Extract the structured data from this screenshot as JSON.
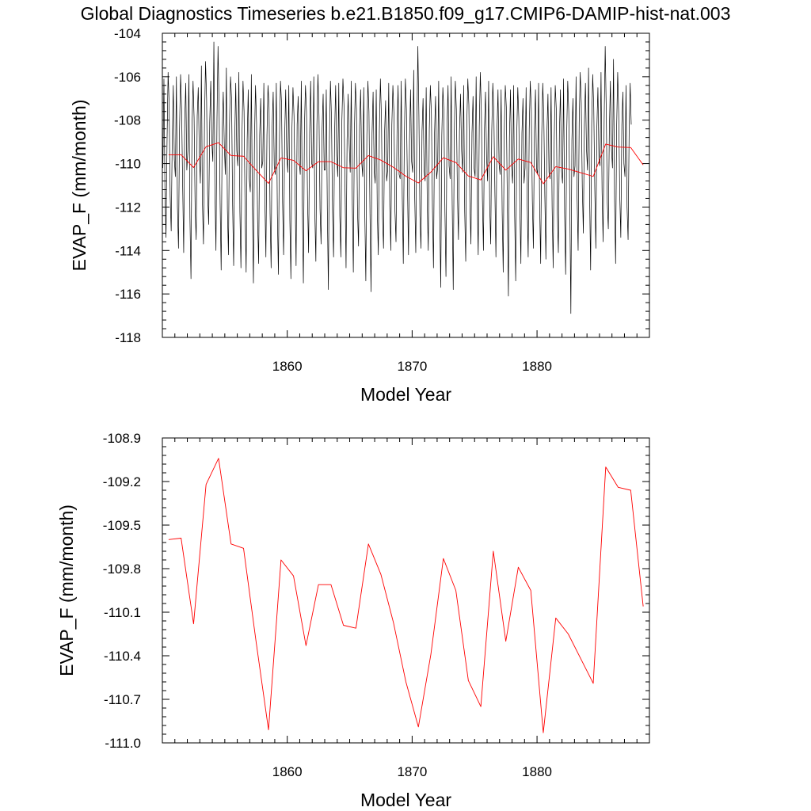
{
  "title": "Global Diagnostics Timeseries b.e21.B1850.f09_g17.CMIP6-DAMIP-hist-nat.003",
  "colors": {
    "monthly": "#000000",
    "annual": "#ff0000"
  },
  "chart_data": [
    {
      "type": "line",
      "xlabel": "Model Year",
      "ylabel": "EVAP_F (mm/month)",
      "xlim": [
        1850,
        1889
      ],
      "ylim": [
        -118,
        -104
      ],
      "xticks": [
        "1860",
        "1870",
        "1880"
      ],
      "yticks": [
        "-104",
        "-106",
        "-108",
        "-110",
        "-112",
        "-114",
        "-116",
        "-118"
      ],
      "series": [
        {
          "values": [
            -110.2,
            -106.1,
            -111.3,
            -113.4,
            -109.0,
            -105.8,
            -107.2,
            -111.5,
            -113.1,
            -108.9,
            -106.4,
            -109.8,
            -110.6,
            -106.0,
            -112.0,
            -113.9,
            -108.4,
            -105.9,
            -107.5,
            -111.0,
            -114.1,
            -108.0,
            -106.3,
            -110.3,
            -109.4,
            -105.9,
            -112.5,
            -115.3,
            -108.3,
            -106.2,
            -107.9,
            -112.1,
            -113.5,
            -107.8,
            -106.5,
            -109.5,
            -110.9,
            -105.5,
            -111.8,
            -113.7,
            -108.0,
            -105.3,
            -107.0,
            -111.4,
            -112.8,
            -108.1,
            -106.2,
            -109.0,
            -109.9,
            -104.4,
            -111.2,
            -114.0,
            -107.9,
            -104.6,
            -107.4,
            -111.8,
            -114.9,
            -108.5,
            -106.7,
            -109.1,
            -110.5,
            -105.6,
            -112.1,
            -114.2,
            -108.2,
            -106.0,
            -107.0,
            -111.9,
            -114.7,
            -109.0,
            -106.3,
            -109.4,
            -110.1,
            -105.8,
            -112.2,
            -114.8,
            -108.7,
            -106.2,
            -107.6,
            -112.2,
            -115.0,
            -108.9,
            -106.6,
            -110.7,
            -111.3,
            -105.9,
            -112.0,
            -115.5,
            -108.9,
            -106.4,
            -108.1,
            -112.6,
            -114.6,
            -108.7,
            -107.0,
            -110.2,
            -109.9,
            -106.3,
            -111.7,
            -114.3,
            -108.7,
            -106.4,
            -107.4,
            -112.3,
            -114.8,
            -108.3,
            -106.7,
            -110.1,
            -110.5,
            -106.3,
            -112.3,
            -115.1,
            -108.9,
            -106.2,
            -107.2,
            -111.8,
            -114.2,
            -108.8,
            -106.6,
            -109.6,
            -110.4,
            -106.4,
            -112.6,
            -115.3,
            -108.4,
            -106.5,
            -107.8,
            -111.3,
            -114.7,
            -108.2,
            -106.9,
            -109.9,
            -110.5,
            -106.2,
            -112.0,
            -115.5,
            -108.3,
            -106.4,
            -107.6,
            -111.7,
            -114.1,
            -108.6,
            -106.2,
            -110.0,
            -110.2,
            -106.0,
            -112.3,
            -114.5,
            -108.2,
            -105.9,
            -107.8,
            -112.1,
            -113.7,
            -108.4,
            -106.8,
            -110.3,
            -110.3,
            -106.6,
            -112.1,
            -115.8,
            -109.0,
            -106.2,
            -107.9,
            -112.2,
            -114.3,
            -108.6,
            -106.4,
            -109.6,
            -110.6,
            -106.3,
            -112.4,
            -114.3,
            -108.0,
            -106.1,
            -107.3,
            -111.1,
            -114.8,
            -108.9,
            -106.8,
            -109.1,
            -110.4,
            -106.2,
            -111.8,
            -115.0,
            -108.5,
            -106.3,
            -107.5,
            -112.2,
            -113.8,
            -108.3,
            -106.6,
            -109.9,
            -110.6,
            -106.5,
            -112.3,
            -115.4,
            -108.7,
            -106.2,
            -107.6,
            -112.3,
            -115.9,
            -108.6,
            -106.7,
            -110.3,
            -110.9,
            -106.6,
            -112.2,
            -114.2,
            -108.5,
            -106.1,
            -107.9,
            -112.4,
            -113.9,
            -108.6,
            -107.1,
            -110.8,
            -110.3,
            -106.3,
            -111.9,
            -114.0,
            -108.2,
            -106.4,
            -107.7,
            -112.2,
            -113.6,
            -108.4,
            -106.4,
            -110.5,
            -110.7,
            -106.2,
            -111.5,
            -114.6,
            -108.8,
            -106.1,
            -107.5,
            -111.0,
            -114.2,
            -108.9,
            -106.6,
            -109.9,
            -110.4,
            -105.7,
            -111.6,
            -114.1,
            -108.5,
            -104.6,
            -107.8,
            -112.4,
            -113.9,
            -108.5,
            -107.0,
            -110.3,
            -110.8,
            -106.5,
            -111.8,
            -114.0,
            -108.4,
            -106.4,
            -107.7,
            -112.0,
            -114.8,
            -108.6,
            -106.9,
            -110.7,
            -110.2,
            -106.2,
            -112.3,
            -115.7,
            -108.7,
            -106.5,
            -107.6,
            -112.2,
            -115.2,
            -108.3,
            -106.4,
            -110.1,
            -110.7,
            -106.0,
            -111.9,
            -115.8,
            -108.6,
            -106.2,
            -107.5,
            -111.4,
            -113.5,
            -108.5,
            -106.8,
            -109.4,
            -110.4,
            -106.4,
            -112.2,
            -114.5,
            -108.2,
            -106.1,
            -107.3,
            -111.8,
            -113.7,
            -108.6,
            -106.9,
            -110.2,
            -110.6,
            -106.0,
            -111.5,
            -114.2,
            -108.3,
            -105.8,
            -107.6,
            -111.6,
            -114.0,
            -108.4,
            -106.7,
            -109.7,
            -110.8,
            -106.2,
            -111.9,
            -113.7,
            -108.5,
            -106.3,
            -107.6,
            -111.3,
            -114.3,
            -108.5,
            -106.6,
            -110.0,
            -110.5,
            -106.6,
            -112.2,
            -115.0,
            -108.6,
            -106.4,
            -107.4,
            -112.1,
            -116.1,
            -108.8,
            -106.6,
            -110.1,
            -110.9,
            -106.4,
            -112.4,
            -115.4,
            -108.7,
            -106.5,
            -107.9,
            -112.0,
            -114.6,
            -108.6,
            -107.0,
            -110.9,
            -110.2,
            -106.5,
            -111.8,
            -114.3,
            -108.4,
            -106.2,
            -107.5,
            -111.7,
            -113.9,
            -108.5,
            -106.6,
            -110.2,
            -110.5,
            -106.3,
            -111.9,
            -114.6,
            -108.7,
            -106.3,
            -107.8,
            -111.5,
            -114.4,
            -108.6,
            -106.8,
            -110.4,
            -110.7,
            -106.5,
            -112.0,
            -114.8,
            -108.9,
            -106.4,
            -107.5,
            -112.3,
            -114.1,
            -108.6,
            -106.6,
            -110.3,
            -110.9,
            -106.1,
            -112.3,
            -115.1,
            -108.6,
            -106.2,
            -107.6,
            -111.9,
            -116.9,
            -108.9,
            -107.0,
            -110.6,
            -110.1,
            -106.0,
            -111.6,
            -114.0,
            -108.1,
            -105.8,
            -107.2,
            -111.1,
            -113.2,
            -108.2,
            -106.3,
            -109.3,
            -110.3,
            -105.6,
            -111.4,
            -114.9,
            -108.2,
            -105.9,
            -107.4,
            -111.2,
            -113.9,
            -108.3,
            -106.5,
            -109.8,
            -110.1,
            -105.8,
            -111.3,
            -113.6,
            -108.0,
            -104.6,
            -107.5,
            -111.8,
            -113.0,
            -108.4,
            -106.2,
            -109.3,
            -110.2,
            -105.2,
            -111.7,
            -114.6,
            -108.3,
            -105.8,
            -107.7,
            -111.5,
            -113.4,
            -108.2,
            -106.7,
            -110.0,
            -110.6,
            -106.4,
            -112.0,
            -113.5,
            -108.5,
            -106.3,
            -108.2
          ]
        },
        {
          "x": [
            1850.5,
            1851.5,
            1852.5,
            1853.5,
            1854.5,
            1855.5,
            1856.5,
            1857.5,
            1858.5,
            1859.5,
            1860.5,
            1861.5,
            1862.5,
            1863.5,
            1864.5,
            1865.5,
            1866.5,
            1867.5,
            1868.5,
            1869.5,
            1870.5,
            1871.5,
            1872.5,
            1873.5,
            1874.5,
            1875.5,
            1876.5,
            1877.5,
            1878.5,
            1879.5,
            1880.5,
            1881.5,
            1882.5,
            1883.5,
            1884.5,
            1885.5,
            1886.5,
            1887.5,
            1888.5
          ],
          "values": [
            -109.6,
            -109.59,
            -110.18,
            -109.22,
            -109.04,
            -109.63,
            -109.66,
            -110.3,
            -110.91,
            -109.74,
            -109.85,
            -110.33,
            -109.91,
            -109.91,
            -110.19,
            -110.21,
            -109.63,
            -109.84,
            -110.17,
            -110.58,
            -110.89,
            -110.39,
            -109.73,
            -109.95,
            -110.57,
            -110.75,
            -109.68,
            -110.3,
            -109.79,
            -109.95,
            -110.93,
            -110.14,
            -110.25,
            -110.42,
            -110.59,
            -109.1,
            -109.24,
            -109.26,
            -110.06
          ]
        }
      ]
    },
    {
      "type": "line",
      "xlabel": "Model Year",
      "ylabel": "EVAP_F (mm/month)",
      "xlim": [
        1850,
        1889
      ],
      "ylim": [
        -111.0,
        -108.9
      ],
      "xticks": [
        "1860",
        "1870",
        "1880"
      ],
      "yticks": [
        "-108.9",
        "-109.2",
        "-109.5",
        "-109.8",
        "-110.1",
        "-110.4",
        "-110.7",
        "-111.0"
      ],
      "series": [
        {
          "x": [
            1850.5,
            1851.5,
            1852.5,
            1853.5,
            1854.5,
            1855.5,
            1856.5,
            1857.5,
            1858.5,
            1859.5,
            1860.5,
            1861.5,
            1862.5,
            1863.5,
            1864.5,
            1865.5,
            1866.5,
            1867.5,
            1868.5,
            1869.5,
            1870.5,
            1871.5,
            1872.5,
            1873.5,
            1874.5,
            1875.5,
            1876.5,
            1877.5,
            1878.5,
            1879.5,
            1880.5,
            1881.5,
            1882.5,
            1883.5,
            1884.5,
            1885.5,
            1886.5,
            1887.5,
            1888.5
          ],
          "values": [
            -109.6,
            -109.59,
            -110.18,
            -109.22,
            -109.04,
            -109.63,
            -109.66,
            -110.3,
            -110.91,
            -109.74,
            -109.85,
            -110.33,
            -109.91,
            -109.91,
            -110.19,
            -110.21,
            -109.63,
            -109.84,
            -110.17,
            -110.58,
            -110.89,
            -110.39,
            -109.73,
            -109.95,
            -110.57,
            -110.75,
            -109.68,
            -110.3,
            -109.79,
            -109.95,
            -110.93,
            -110.14,
            -110.25,
            -110.42,
            -110.59,
            -109.1,
            -109.24,
            -109.26,
            -110.06
          ]
        }
      ]
    }
  ]
}
